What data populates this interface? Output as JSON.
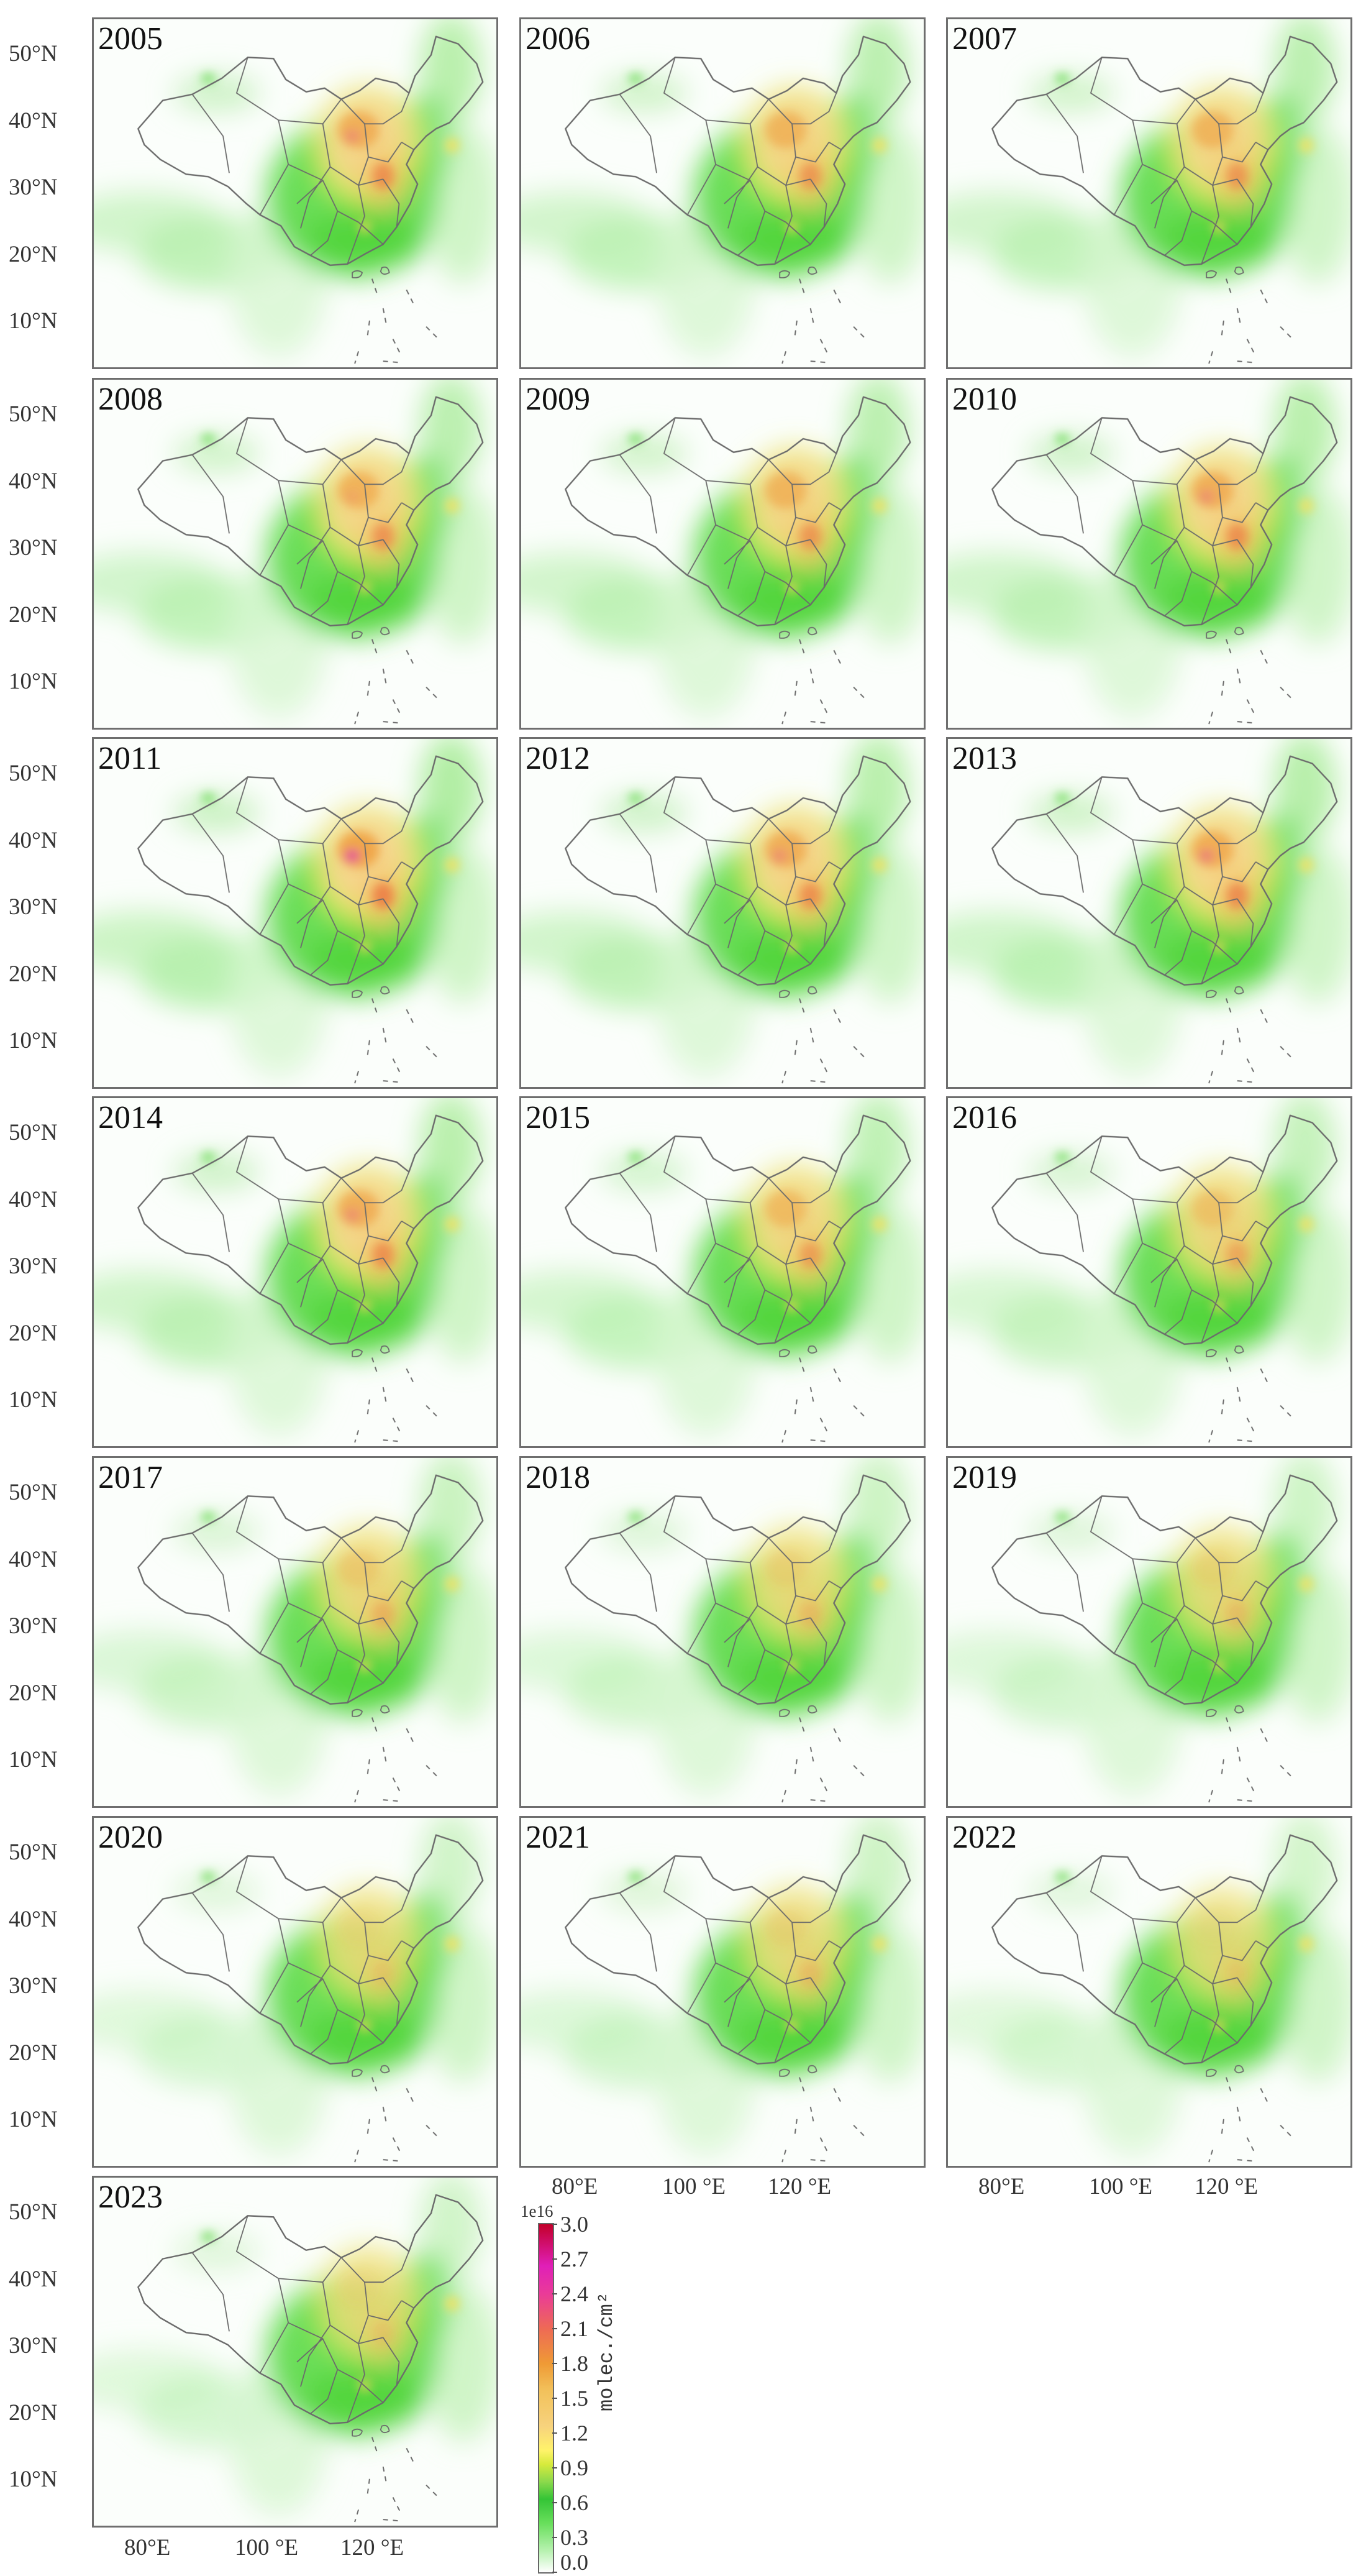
{
  "panels": [
    {
      "year": "2005",
      "strength": 0.95
    },
    {
      "year": "2006",
      "strength": 0.9
    },
    {
      "year": "2007",
      "strength": 0.9
    },
    {
      "year": "2008",
      "strength": 0.92
    },
    {
      "year": "2009",
      "strength": 0.9
    },
    {
      "year": "2010",
      "strength": 0.95
    },
    {
      "year": "2011",
      "strength": 1.05
    },
    {
      "year": "2012",
      "strength": 0.95
    },
    {
      "year": "2013",
      "strength": 0.97
    },
    {
      "year": "2014",
      "strength": 0.95
    },
    {
      "year": "2015",
      "strength": 0.85
    },
    {
      "year": "2016",
      "strength": 0.78
    },
    {
      "year": "2017",
      "strength": 0.72
    },
    {
      "year": "2018",
      "strength": 0.66
    },
    {
      "year": "2019",
      "strength": 0.64
    },
    {
      "year": "2020",
      "strength": 0.6
    },
    {
      "year": "2021",
      "strength": 0.65
    },
    {
      "year": "2022",
      "strength": 0.58
    },
    {
      "year": "2023",
      "strength": 0.6
    }
  ],
  "axes": {
    "lat_ticks": [
      "50°N",
      "40°N",
      "30°N",
      "20°N",
      "10°N"
    ],
    "lon_ticks": [
      "80°E",
      "100 °E",
      "120 °E"
    ]
  },
  "colorbar": {
    "exponent": "1e16",
    "ticks": [
      "3.0",
      "2.7",
      "2.4",
      "2.1",
      "1.8",
      "1.5",
      "1.2",
      "0.9",
      "0.6",
      "0.3",
      "0.0"
    ],
    "units": "molec./cm²"
  },
  "colors": {
    "background": "#fbfefb",
    "green_low": "#b9f2b2",
    "green_mid": "#34c436",
    "yellow": "#fff36a",
    "peach": "#f7d27d",
    "orange": "#ef9a35",
    "magenta": "#e01fb8",
    "red": "#c2002a",
    "border": "#777777"
  }
}
